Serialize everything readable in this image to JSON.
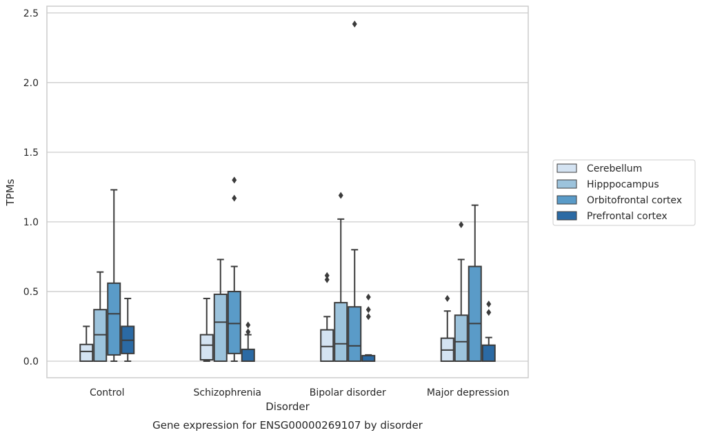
{
  "chart_data": {
    "type": "box",
    "xlabel": "Disorder",
    "ylabel": "TPMs",
    "caption": "Gene expression for ENSG00000269107 by disorder",
    "ylim": [
      -0.12,
      2.55
    ],
    "yticks": [
      0.0,
      0.5,
      1.0,
      1.5,
      2.0,
      2.5
    ],
    "ytick_labels": [
      "0.0",
      "0.5",
      "1.0",
      "1.5",
      "2.0",
      "2.5"
    ],
    "grid": "horizontal",
    "legend_position": "right",
    "categories": [
      "Control",
      "Schizophrenia",
      "Bipolar disorder",
      "Major depression"
    ],
    "series": [
      {
        "name": "Cerebellum",
        "color": "#d4e3f2",
        "boxes": [
          {
            "whislo": 0.0,
            "q1": 0.0,
            "med": 0.07,
            "q3": 0.12,
            "whishi": 0.25,
            "fliers": []
          },
          {
            "whislo": 0.0,
            "q1": 0.01,
            "med": 0.115,
            "q3": 0.19,
            "whishi": 0.45,
            "fliers": []
          },
          {
            "whislo": 0.0,
            "q1": 0.0,
            "med": 0.105,
            "q3": 0.225,
            "whishi": 0.32,
            "fliers": [
              0.585,
              0.615
            ]
          },
          {
            "whislo": 0.0,
            "q1": 0.0,
            "med": 0.08,
            "q3": 0.165,
            "whishi": 0.36,
            "fliers": [
              0.45
            ]
          }
        ]
      },
      {
        "name": "Hipppocampus",
        "color": "#9cc3dc",
        "boxes": [
          {
            "whislo": 0.0,
            "q1": 0.0,
            "med": 0.19,
            "q3": 0.37,
            "whishi": 0.64,
            "fliers": []
          },
          {
            "whislo": 0.0,
            "q1": 0.0,
            "med": 0.28,
            "q3": 0.48,
            "whishi": 0.73,
            "fliers": []
          },
          {
            "whislo": 0.0,
            "q1": 0.0,
            "med": 0.125,
            "q3": 0.42,
            "whishi": 1.02,
            "fliers": [
              1.19
            ]
          },
          {
            "whislo": 0.0,
            "q1": 0.0,
            "med": 0.14,
            "q3": 0.33,
            "whishi": 0.73,
            "fliers": [
              0.98
            ]
          }
        ]
      },
      {
        "name": "Orbitofrontal cortex",
        "color": "#5a9bc8",
        "boxes": [
          {
            "whislo": 0.0,
            "q1": 0.045,
            "med": 0.34,
            "q3": 0.56,
            "whishi": 1.23,
            "fliers": []
          },
          {
            "whislo": 0.0,
            "q1": 0.055,
            "med": 0.27,
            "q3": 0.5,
            "whishi": 0.68,
            "fliers": [
              1.17,
              1.3
            ]
          },
          {
            "whislo": 0.0,
            "q1": 0.0,
            "med": 0.11,
            "q3": 0.39,
            "whishi": 0.8,
            "fliers": [
              2.42
            ]
          },
          {
            "whislo": 0.0,
            "q1": 0.0,
            "med": 0.27,
            "q3": 0.68,
            "whishi": 1.12,
            "fliers": []
          }
        ]
      },
      {
        "name": "Prefrontal cortex",
        "color": "#2b6aa4",
        "boxes": [
          {
            "whislo": 0.0,
            "q1": 0.055,
            "med": 0.15,
            "q3": 0.25,
            "whishi": 0.45,
            "fliers": []
          },
          {
            "whislo": 0.0,
            "q1": 0.0,
            "med": 0.0,
            "q3": 0.085,
            "whishi": 0.19,
            "fliers": [
              0.21,
              0.26
            ]
          },
          {
            "whislo": 0.0,
            "q1": 0.0,
            "med": 0.0,
            "q3": 0.04,
            "whishi": 0.045,
            "fliers": [
              0.32,
              0.37,
              0.46
            ]
          },
          {
            "whislo": 0.0,
            "q1": 0.0,
            "med": 0.0,
            "q3": 0.115,
            "whishi": 0.17,
            "fliers": [
              0.35,
              0.41
            ]
          }
        ]
      }
    ]
  }
}
